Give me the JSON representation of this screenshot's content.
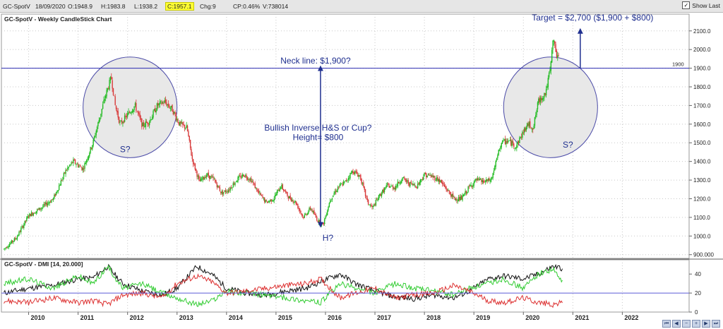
{
  "quote_bar": {
    "symbol": "GC-SpotV",
    "date": "18/09/2020",
    "open": "O:1948.9",
    "high": "H:1983.8",
    "low": "L:1938.2",
    "close": "C:1957.1",
    "change": "Chg:9",
    "change_pct": "CP:0.46%",
    "volume": "V:738014",
    "show_last_label": "Show Last",
    "show_last_checked": "✓"
  },
  "chart_data": [
    {
      "type": "candlestick",
      "title": "GC-SpotV - Weekly CandleStick Chart",
      "ylim": [
        880,
        2190
      ],
      "y_ticks": [
        "900.000",
        "1000.0",
        "1100.0",
        "1200.0",
        "1300.0",
        "1400.0",
        "1500.0",
        "1600.0",
        "1700.0",
        "1800.0",
        "1900.0",
        "2000.0",
        "2100.0"
      ],
      "y_tick_values": [
        900,
        1000,
        1100,
        1200,
        1300,
        1400,
        1500,
        1600,
        1700,
        1800,
        1900,
        2000,
        2100
      ],
      "x_range": [
        2009.45,
        2023.35
      ],
      "x_ticks": [
        "2010",
        "2011",
        "2012",
        "2013",
        "2014",
        "2015",
        "2016",
        "2017",
        "2018",
        "2019",
        "2020",
        "2021",
        "2022"
      ],
      "x_tick_values": [
        2010,
        2011,
        2012,
        2013,
        2014,
        2015,
        2016,
        2017,
        2018,
        2019,
        2020,
        2021,
        2022
      ],
      "close_path": {
        "x": [
          2009.5,
          2009.75,
          2010.0,
          2010.25,
          2010.5,
          2010.75,
          2010.9,
          2011.1,
          2011.3,
          2011.55,
          2011.67,
          2011.75,
          2011.85,
          2012.0,
          2012.15,
          2012.3,
          2012.45,
          2012.6,
          2012.75,
          2012.9,
          2013.05,
          2013.2,
          2013.3,
          2013.45,
          2013.6,
          2013.75,
          2013.9,
          2014.05,
          2014.2,
          2014.35,
          2014.5,
          2014.65,
          2014.8,
          2014.95,
          2015.1,
          2015.25,
          2015.4,
          2015.55,
          2015.7,
          2015.85,
          2015.95,
          2016.1,
          2016.25,
          2016.4,
          2016.55,
          2016.7,
          2016.85,
          2016.95,
          2017.1,
          2017.25,
          2017.4,
          2017.55,
          2017.7,
          2017.85,
          2018.0,
          2018.15,
          2018.3,
          2018.45,
          2018.6,
          2018.75,
          2018.9,
          2019.05,
          2019.2,
          2019.35,
          2019.45,
          2019.55,
          2019.7,
          2019.85,
          2020.0,
          2020.1,
          2020.2,
          2020.3,
          2020.45,
          2020.55,
          2020.6,
          2020.68,
          2020.72
        ],
        "y": [
          930,
          990,
          1110,
          1150,
          1200,
          1350,
          1400,
          1360,
          1500,
          1750,
          1850,
          1700,
          1600,
          1650,
          1700,
          1590,
          1620,
          1700,
          1720,
          1680,
          1600,
          1580,
          1420,
          1290,
          1330,
          1300,
          1230,
          1250,
          1300,
          1330,
          1300,
          1230,
          1180,
          1200,
          1270,
          1210,
          1180,
          1100,
          1150,
          1080,
          1060,
          1200,
          1260,
          1290,
          1350,
          1320,
          1180,
          1150,
          1220,
          1270,
          1260,
          1310,
          1280,
          1270,
          1330,
          1320,
          1300,
          1250,
          1200,
          1200,
          1260,
          1300,
          1290,
          1300,
          1400,
          1500,
          1510,
          1480,
          1560,
          1600,
          1580,
          1720,
          1770,
          1900,
          2060,
          1960,
          1950
        ]
      },
      "annotations": [
        "Target = $2,700 ($1,900 + $800)",
        "Neck line: $1,900?",
        "Bullish Inverse H&S or Cup?",
        "Height= $800",
        "S?",
        "S?",
        "H?"
      ],
      "neckline": {
        "value": 1900,
        "label": "1900"
      },
      "height_arrow": {
        "x": 2015.9,
        "from": 1060,
        "to": 1900
      },
      "target_arrow": {
        "x": 2021.15,
        "from": 1900,
        "to": 2100
      },
      "circles": [
        {
          "label": "S?",
          "x_center": 2012.05,
          "y_center": 1690,
          "x_halfwidth": 0.95,
          "y_halfheight": 270
        },
        {
          "label": "S?",
          "x_center": 2020.55,
          "y_center": 1690,
          "x_halfwidth": 0.95,
          "y_halfheight": 270
        }
      ],
      "colors": {
        "up": "#22bb22",
        "down": "#d83a3a",
        "annotation": "#1f2f8f",
        "neckline": "#2b2bb0",
        "circle_fill": "#e8e8e8",
        "circle_stroke": "#4c4ca8"
      }
    },
    {
      "type": "line",
      "title": "GC-SpotV - DMI [14, 20.000]",
      "ylim": [
        0,
        55
      ],
      "y_ticks": [
        "40",
        "20",
        "0"
      ],
      "y_tick_values": [
        40,
        20,
        0
      ],
      "series": [
        {
          "color": "#111111",
          "x": [
            2009.5,
            2010.0,
            2010.5,
            2011.0,
            2011.3,
            2011.6,
            2011.9,
            2012.3,
            2012.7,
            2013.0,
            2013.4,
            2013.7,
            2014.0,
            2014.4,
            2014.8,
            2015.2,
            2015.6,
            2015.9,
            2016.3,
            2016.6,
            2017.0,
            2017.4,
            2017.8,
            2018.2,
            2018.6,
            2018.9,
            2019.3,
            2019.6,
            2020.0,
            2020.3,
            2020.6,
            2020.8
          ],
          "y": [
            20,
            25,
            28,
            35,
            36,
            48,
            30,
            22,
            18,
            25,
            48,
            40,
            25,
            20,
            18,
            22,
            25,
            32,
            40,
            30,
            22,
            16,
            14,
            18,
            15,
            22,
            35,
            38,
            35,
            40,
            48,
            46
          ]
        },
        {
          "color": "#33cc33",
          "x": [
            2009.5,
            2010.0,
            2010.5,
            2011.0,
            2011.3,
            2011.6,
            2011.9,
            2012.3,
            2012.7,
            2013.0,
            2013.4,
            2013.7,
            2014.0,
            2014.4,
            2014.8,
            2015.2,
            2015.6,
            2015.9,
            2016.3,
            2016.6,
            2017.0,
            2017.4,
            2017.8,
            2018.2,
            2018.6,
            2018.9,
            2019.3,
            2019.6,
            2020.0,
            2020.3,
            2020.6,
            2020.8
          ],
          "y": [
            30,
            35,
            25,
            38,
            30,
            48,
            25,
            30,
            20,
            15,
            8,
            12,
            22,
            20,
            18,
            15,
            12,
            10,
            30,
            25,
            20,
            30,
            25,
            22,
            18,
            25,
            30,
            35,
            25,
            40,
            45,
            30
          ]
        },
        {
          "color": "#dd3333",
          "x": [
            2009.5,
            2010.0,
            2010.5,
            2011.0,
            2011.3,
            2011.6,
            2011.9,
            2012.3,
            2012.7,
            2013.0,
            2013.4,
            2013.7,
            2014.0,
            2014.4,
            2014.8,
            2015.2,
            2015.6,
            2015.9,
            2016.3,
            2016.6,
            2017.0,
            2017.4,
            2017.8,
            2018.2,
            2018.6,
            2018.9,
            2019.3,
            2019.6,
            2020.0,
            2020.3,
            2020.6,
            2020.8
          ],
          "y": [
            12,
            10,
            15,
            10,
            12,
            8,
            18,
            20,
            15,
            30,
            38,
            32,
            20,
            22,
            25,
            28,
            30,
            35,
            15,
            20,
            25,
            15,
            18,
            20,
            28,
            22,
            12,
            10,
            15,
            10,
            8,
            10
          ]
        },
        {
          "color": "#5b5bd6",
          "x": [
            2009.45,
            2023.35
          ],
          "y": [
            20,
            20
          ]
        }
      ]
    }
  ]
}
